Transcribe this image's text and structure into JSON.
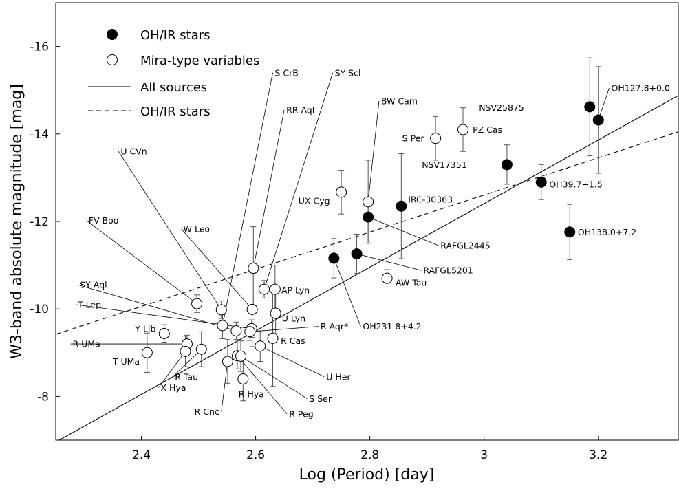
{
  "chart_data": {
    "type": "scatter",
    "xlabel": "Log (Period) [day]",
    "ylabel": "W3-band absolute magnitude [mag]",
    "xlim": [
      2.25,
      3.34
    ],
    "ylim": [
      -7,
      -17
    ],
    "y_axis_inverted": true,
    "xticks": [
      2.4,
      2.6,
      2.8,
      3,
      3.2
    ],
    "xtick_labels": [
      "2.4",
      "2.6",
      "2.8",
      "3",
      "3.2"
    ],
    "yticks": [
      -8,
      -10,
      -12,
      -14,
      -16
    ],
    "ytick_labels": [
      "-8",
      "-10",
      "-12",
      "-14",
      "-16"
    ],
    "grid": false,
    "legend_position": "top-left",
    "legend": [
      {
        "label": "OH/IR stars",
        "marker": "filled-circle"
      },
      {
        "label": "Mira-type variables",
        "marker": "open-circle"
      },
      {
        "label": "All sources",
        "line": "solid"
      },
      {
        "label": "OH/IR stars",
        "line": "dashed"
      }
    ],
    "fit_lines": [
      {
        "name": "All sources",
        "style": "solid",
        "points": [
          [
            2.256,
            -7
          ],
          [
            3.34,
            -14.88
          ]
        ]
      },
      {
        "name": "OH/IR stars",
        "style": "dashed",
        "points": [
          [
            2.25,
            -9.42
          ],
          [
            3.34,
            -14.05
          ]
        ]
      }
    ],
    "series": [
      {
        "name": "OH/IR stars",
        "marker": "filled",
        "points": [
          {
            "label": "NSV25875",
            "x": 3.185,
            "y": -14.62,
            "err": 1.12,
            "lx": 3.07,
            "ly": -14.6,
            "anchor": "end"
          },
          {
            "label": "OH127.8+0.0",
            "x": 3.2,
            "y": -14.32,
            "err": 1.22,
            "lx": 3.219,
            "ly": -15.05,
            "anchor": "start",
            "leader": true
          },
          {
            "label": "NSV17351",
            "x": 3.04,
            "y": -13.3,
            "err": 0.45,
            "lx": 2.97,
            "ly": -13.3,
            "anchor": "end"
          },
          {
            "label": "OH39.7+1.5",
            "x": 3.1,
            "y": -12.9,
            "err": 0.4,
            "lx": 3.114,
            "ly": -12.85,
            "anchor": "start"
          },
          {
            "label": "OH138.0+7.2",
            "x": 3.15,
            "y": -11.76,
            "err": 0.63,
            "lx": 3.164,
            "ly": -11.76,
            "anchor": "start"
          },
          {
            "label": "IRC-30363",
            "x": 2.855,
            "y": -12.35,
            "err": 1.2,
            "lx": 2.867,
            "ly": -12.5,
            "anchor": "start"
          },
          {
            "label": "RAFGL2445",
            "x": 2.797,
            "y": -12.1,
            "err": 0.55,
            "lx": 2.92,
            "ly": -11.45,
            "anchor": "start",
            "leader": true
          },
          {
            "label": "RAFGL5201",
            "x": 2.777,
            "y": -11.26,
            "err": 0.45,
            "lx": 2.89,
            "ly": -10.88,
            "anchor": "start",
            "leader": true
          },
          {
            "label": "OH231.8+4.2",
            "x": 2.737,
            "y": -11.16,
            "err": 0.45,
            "lx": 2.784,
            "ly": -9.6,
            "anchor": "start",
            "leader": true
          }
        ]
      },
      {
        "name": "Mira-type variables",
        "marker": "open",
        "points": [
          {
            "label": "BW Cam",
            "x": 2.797,
            "y": -12.45,
            "err": 0.95,
            "lx": 2.816,
            "ly": -14.75,
            "anchor": "start",
            "leader": true
          },
          {
            "label": "S Per",
            "x": 2.915,
            "y": -13.9,
            "err": 0.5,
            "lx": 2.895,
            "ly": -13.9,
            "anchor": "end"
          },
          {
            "label": "PZ Cas",
            "x": 2.963,
            "y": -14.1,
            "err": 0.5,
            "lx": 2.98,
            "ly": -14.1,
            "anchor": "start"
          },
          {
            "label": "UX Cyg",
            "x": 2.75,
            "y": -12.67,
            "err": 0.5,
            "lx": 2.73,
            "ly": -12.47,
            "anchor": "end"
          },
          {
            "label": "AW Tau",
            "x": 2.83,
            "y": -10.7,
            "err": 0.2,
            "lx": 2.845,
            "ly": -10.6,
            "anchor": "start"
          },
          {
            "label": "AP Lyn",
            "x": 2.634,
            "y": -10.45,
            "err": 0.55,
            "lx": 2.645,
            "ly": -10.43,
            "anchor": "start"
          },
          {
            "label": "U Lyn",
            "x": 2.635,
            "y": -9.9,
            "err": 0.6,
            "lx": 2.646,
            "ly": -9.78,
            "anchor": "start"
          },
          {
            "label": "S CrB",
            "x": 2.542,
            "y": -9.62,
            "err": 0.3,
            "lx": 2.63,
            "ly": -15.4,
            "anchor": "start",
            "leader": true
          },
          {
            "label": "SY Scl",
            "x": 2.615,
            "y": -10.45,
            "err": 0.2,
            "lx": 2.735,
            "ly": -15.4,
            "anchor": "start",
            "leader": true
          },
          {
            "label": "RR Aql",
            "x": 2.596,
            "y": -10.93,
            "err": 0.95,
            "lx": 2.65,
            "ly": -14.55,
            "anchor": "start",
            "leader": true
          },
          {
            "label": "U CVn",
            "x": 2.54,
            "y": -9.98,
            "err": 0.2,
            "lx": 2.36,
            "ly": -13.6,
            "anchor": "start",
            "leader": true
          },
          {
            "label": "W Leo",
            "x": 2.594,
            "y": -9.99,
            "err": 0.85,
            "lx": 2.47,
            "ly": -11.83,
            "anchor": "start",
            "leader": true
          },
          {
            "label": "FV Boo",
            "x": 2.497,
            "y": -10.12,
            "err": 0.2,
            "lx": 2.304,
            "ly": -12.02,
            "anchor": "start",
            "leader": true
          },
          {
            "label": "SY Aql",
            "x": 2.566,
            "y": -9.5,
            "err": 0.2,
            "lx": 2.289,
            "ly": -10.55,
            "anchor": "start",
            "leader": true
          },
          {
            "label": "T Lep",
            "x": 2.593,
            "y": -9.55,
            "err": 0.2,
            "lx": 2.285,
            "ly": -10.1,
            "anchor": "start",
            "leader": true
          },
          {
            "label": "R Aqr*",
            "x": 2.59,
            "y": -9.48,
            "err": 0.2,
            "lx": 2.71,
            "ly": -9.6,
            "anchor": "start",
            "leader": true
          },
          {
            "label": "Y Lib",
            "x": 2.44,
            "y": -9.44,
            "err": 0.2,
            "lx": 2.389,
            "ly": -9.55,
            "anchor": "start"
          },
          {
            "label": "R UMa",
            "x": 2.48,
            "y": -9.2,
            "err": 0.2,
            "lx": 2.276,
            "ly": -9.2,
            "anchor": "start",
            "leader": true
          },
          {
            "label": "T UMa",
            "x": 2.41,
            "y": -9.0,
            "err": 0.45,
            "lx": 2.397,
            "ly": -8.8,
            "anchor": "end"
          },
          {
            "label": "X Hya",
            "x": 2.477,
            "y": -9.03,
            "err": 0.35,
            "lx": 2.43,
            "ly": -8.2,
            "anchor": "start",
            "leader": true
          },
          {
            "label": "R Tau",
            "x": 2.505,
            "y": -9.08,
            "err": 0.4,
            "lx": 2.455,
            "ly": -8.45,
            "anchor": "start",
            "leader": true
          },
          {
            "label": "R Cnc",
            "x": 2.551,
            "y": -8.8,
            "err": 0.5,
            "lx": 2.54,
            "ly": -7.65,
            "anchor": "end",
            "leader": true
          },
          {
            "label": "R Hya",
            "x": 2.578,
            "y": -8.4,
            "err": 0.5,
            "lx": 2.57,
            "ly": -8.05,
            "anchor": "start"
          },
          {
            "label": "R Peg",
            "x": 2.568,
            "y": -8.93,
            "err": 0.3,
            "lx": 2.655,
            "ly": -7.6,
            "anchor": "start",
            "leader": true
          },
          {
            "label": "S Ser",
            "x": 2.574,
            "y": -8.92,
            "err": 0.35,
            "lx": 2.69,
            "ly": -7.95,
            "anchor": "start",
            "leader": true
          },
          {
            "label": "U Her",
            "x": 2.608,
            "y": -9.15,
            "err": 0.35,
            "lx": 2.72,
            "ly": -8.45,
            "anchor": "start",
            "leader": true
          },
          {
            "label": "R Cas",
            "x": 2.63,
            "y": -9.33,
            "err": 1.1,
            "lx": 2.644,
            "ly": -9.27,
            "anchor": "start"
          }
        ]
      }
    ]
  }
}
